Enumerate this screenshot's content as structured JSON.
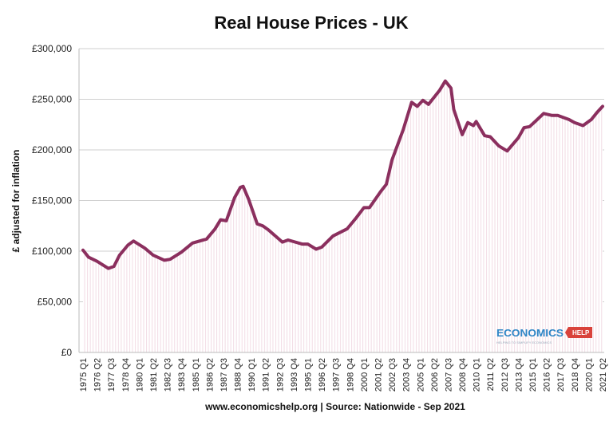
{
  "chart_data": {
    "type": "line",
    "title": "Real House Prices - UK",
    "ylabel": "£ adjusted for inflation",
    "xlabel": "",
    "footer": "www.economicshelp.org | Source: Nationwide - Sep 2021",
    "ylim": [
      0,
      300000
    ],
    "yticks": [
      0,
      50000,
      100000,
      150000,
      200000,
      250000,
      300000
    ],
    "ytick_labels": [
      "£0",
      "£50,000",
      "£100,000",
      "£150,000",
      "£200,000",
      "£250,000",
      "£300,000"
    ],
    "xrange": [
      "1975 Q1",
      "2021 Q2"
    ],
    "xtick_labels": [
      "1975 Q1",
      "1976 Q2",
      "1977 Q3",
      "1978 Q4",
      "1980 Q1",
      "1981 Q2",
      "1982 Q3",
      "1983 Q4",
      "1985 Q1",
      "1986 Q2",
      "1987 Q3",
      "1988 Q4",
      "1990 Q1",
      "1991 Q2",
      "1992 Q3",
      "1993 Q4",
      "1995 Q1",
      "1996 Q2",
      "1997 Q3",
      "1998 Q4",
      "2000 Q1",
      "2001 Q2",
      "2002 Q3",
      "2003 Q4",
      "2005 Q1",
      "2006 Q2",
      "2007 Q3",
      "2008 Q4",
      "2010 Q1",
      "2011 Q2",
      "2012 Q3",
      "2013 Q4",
      "2015 Q1",
      "2016 Q2",
      "2017 Q3",
      "2018 Q4",
      "2020 Q1",
      "2021 Q2"
    ],
    "grid": "horizontal",
    "legend": "none",
    "colors": {
      "line": "#8b2f5e",
      "fill": "#f2dce5",
      "grid": "#cfcfcf"
    },
    "series": [
      {
        "points": [
          [
            "1975 Q1",
            101000
          ],
          [
            "1975 Q3",
            94000
          ],
          [
            "1976 Q2",
            90000
          ],
          [
            "1977 Q2",
            83000
          ],
          [
            "1977 Q4",
            85000
          ],
          [
            "1978 Q2",
            96000
          ],
          [
            "1979 Q1",
            106000
          ],
          [
            "1979 Q3",
            110000
          ],
          [
            "1980 Q3",
            103000
          ],
          [
            "1981 Q2",
            96000
          ],
          [
            "1982 Q2",
            91000
          ],
          [
            "1982 Q4",
            92000
          ],
          [
            "1983 Q4",
            99000
          ],
          [
            "1984 Q4",
            108000
          ],
          [
            "1986 Q1",
            112000
          ],
          [
            "1986 Q4",
            122000
          ],
          [
            "1987 Q2",
            131000
          ],
          [
            "1987 Q4",
            130000
          ],
          [
            "1988 Q3",
            153000
          ],
          [
            "1989 Q1",
            163000
          ],
          [
            "1989 Q2",
            164000
          ],
          [
            "1989 Q4",
            151000
          ],
          [
            "1990 Q3",
            127000
          ],
          [
            "1991 Q1",
            125000
          ],
          [
            "1991 Q3",
            121000
          ],
          [
            "1992 Q4",
            109000
          ],
          [
            "1993 Q2",
            111000
          ],
          [
            "1994 Q3",
            107000
          ],
          [
            "1995 Q1",
            107000
          ],
          [
            "1995 Q4",
            102000
          ],
          [
            "1996 Q2",
            104000
          ],
          [
            "1997 Q2",
            115000
          ],
          [
            "1998 Q3",
            122000
          ],
          [
            "1999 Q2",
            132000
          ],
          [
            "2000 Q1",
            143000
          ],
          [
            "2000 Q3",
            143000
          ],
          [
            "2001 Q3",
            159000
          ],
          [
            "2002 Q1",
            166000
          ],
          [
            "2002 Q3",
            190000
          ],
          [
            "2003 Q3",
            220000
          ],
          [
            "2004 Q2",
            247000
          ],
          [
            "2004 Q4",
            243000
          ],
          [
            "2005 Q2",
            249000
          ],
          [
            "2005 Q4",
            245000
          ],
          [
            "2006 Q4",
            259000
          ],
          [
            "2007 Q2",
            268000
          ],
          [
            "2007 Q4",
            261000
          ],
          [
            "2008 Q1",
            240000
          ],
          [
            "2008 Q4",
            215000
          ],
          [
            "2009 Q2",
            227000
          ],
          [
            "2009 Q4",
            224000
          ],
          [
            "2010 Q1",
            228000
          ],
          [
            "2010 Q4",
            214000
          ],
          [
            "2011 Q2",
            213000
          ],
          [
            "2012 Q1",
            204000
          ],
          [
            "2012 Q4",
            199000
          ],
          [
            "2013 Q4",
            212000
          ],
          [
            "2014 Q2",
            222000
          ],
          [
            "2014 Q4",
            223000
          ],
          [
            "2015 Q2",
            228000
          ],
          [
            "2016 Q1",
            236000
          ],
          [
            "2016 Q4",
            234000
          ],
          [
            "2017 Q2",
            234000
          ],
          [
            "2018 Q2",
            230000
          ],
          [
            "2018 Q4",
            227000
          ],
          [
            "2019 Q3",
            224000
          ],
          [
            "2020 Q2",
            230000
          ],
          [
            "2020 Q4",
            237000
          ],
          [
            "2021 Q2",
            243000
          ]
        ]
      }
    ]
  },
  "logo": {
    "text": "ECONOMICS",
    "tag": "HELP",
    "tagline": "HELPING TO SIMPLIFY ECONOMICS",
    "tag_color": "#d9433b"
  }
}
